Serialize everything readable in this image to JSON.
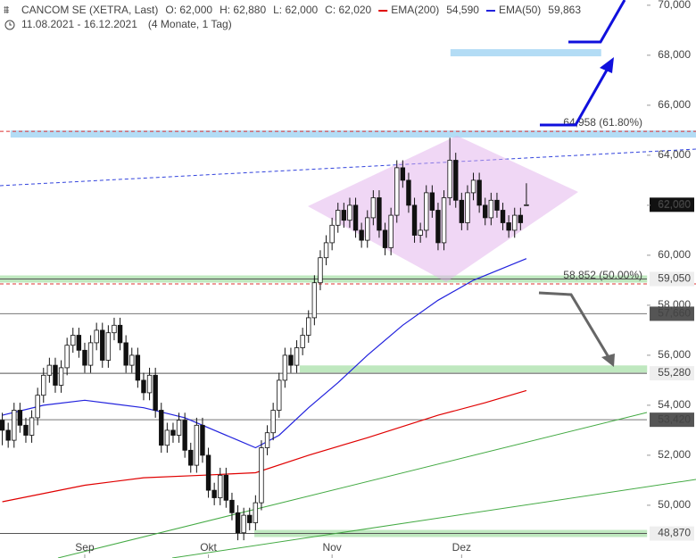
{
  "chart_data": {
    "type": "candlestick",
    "title": "CANCOM SE (XETRA, Last)",
    "header_stats": [
      "O: 62,000",
      "H: 62,880",
      "L: 62,000",
      "C: 62,020"
    ],
    "subtitle": "11.08.2021 - 16.12.2021",
    "period": "(4 Monate, 1 Tag)",
    "xlim": [
      -0.39,
      117.8
    ],
    "ylim": [
      47.89,
      70.21
    ],
    "xticks": [
      {
        "value": 14,
        "label": "Sep"
      },
      {
        "value": 35,
        "label": "Okt"
      },
      {
        "value": 56,
        "label": "Nov"
      },
      {
        "value": 78,
        "label": "Dez"
      }
    ],
    "yticks": [
      {
        "value": 50,
        "label": "50,000"
      },
      {
        "value": 52,
        "label": "52,000"
      },
      {
        "value": 54,
        "label": "54,000"
      },
      {
        "value": 56,
        "label": "56,000"
      },
      {
        "value": 58,
        "label": "58,000"
      },
      {
        "value": 60,
        "label": "60,000"
      },
      {
        "value": 62,
        "label": "62,000"
      },
      {
        "value": 64,
        "label": "64,000"
      },
      {
        "value": 66,
        "label": "66,000"
      },
      {
        "value": 68,
        "label": "68,000"
      },
      {
        "value": 70,
        "label": "70,000"
      }
    ],
    "candles": {
      "open": [
        53.4,
        53.0,
        52.6,
        53.8,
        53.2,
        52.8,
        53.5,
        54.4,
        55.2,
        55.6,
        54.8,
        55.5,
        56.4,
        56.8,
        56.2,
        55.6,
        56.5,
        57.0,
        55.8,
        56.9,
        57.2,
        56.5,
        55.6,
        56.0,
        55.0,
        54.5,
        55.2,
        53.8,
        52.4,
        53.0,
        52.8,
        53.4,
        52.2,
        51.6,
        53.2,
        52.0,
        50.6,
        50.3,
        51.2,
        50.2,
        49.7,
        48.9,
        49.6,
        49.3,
        50.1,
        52.3,
        52.9,
        53.8,
        55.0,
        56.0,
        55.6,
        56.3,
        56.8,
        57.5,
        58.9,
        59.9,
        60.5,
        61.2,
        61.8,
        61.4,
        62.0,
        61.0,
        60.6,
        61.5,
        62.3,
        61.0,
        60.3,
        61.6,
        63.5,
        63.0,
        62.0,
        60.8,
        61.0,
        62.5,
        61.8,
        60.5,
        62.3,
        63.8,
        62.2,
        61.3,
        62.5,
        63.0,
        62.0,
        61.5,
        62.2,
        61.8,
        61.3,
        61.0,
        61.6,
        62.0
      ],
      "high": [
        53.7,
        53.3,
        54.1,
        54.1,
        53.5,
        53.8,
        54.7,
        55.5,
        55.9,
        55.9,
        55.8,
        56.7,
        57.1,
        57.1,
        56.5,
        56.8,
        57.3,
        57.3,
        57.2,
        57.5,
        57.5,
        56.8,
        56.3,
        56.3,
        55.3,
        55.5,
        55.5,
        54.1,
        53.3,
        53.3,
        53.7,
        53.7,
        52.5,
        53.5,
        53.5,
        52.3,
        50.9,
        51.5,
        51.5,
        50.5,
        50.0,
        49.9,
        49.9,
        50.4,
        52.6,
        53.2,
        54.1,
        55.3,
        56.3,
        56.3,
        56.6,
        57.1,
        57.8,
        59.2,
        60.2,
        60.8,
        61.5,
        62.1,
        62.1,
        62.3,
        62.3,
        61.3,
        61.8,
        62.6,
        62.6,
        61.3,
        61.9,
        63.8,
        63.8,
        63.3,
        62.3,
        61.3,
        62.8,
        62.8,
        62.1,
        62.6,
        64.7,
        64.1,
        62.5,
        62.8,
        63.3,
        63.3,
        62.3,
        62.5,
        62.5,
        62.1,
        61.6,
        61.9,
        61.9,
        62.88
      ],
      "low": [
        52.4,
        52.3,
        52.3,
        52.9,
        52.5,
        52.5,
        53.2,
        54.1,
        54.9,
        54.5,
        54.5,
        55.2,
        56.1,
        55.9,
        55.3,
        55.3,
        56.2,
        55.5,
        55.5,
        56.6,
        56.2,
        55.3,
        55.3,
        54.7,
        54.2,
        54.2,
        53.5,
        52.1,
        52.1,
        52.5,
        52.5,
        51.9,
        51.3,
        51.3,
        51.7,
        50.3,
        50.0,
        50.0,
        49.9,
        49.4,
        48.6,
        48.6,
        49.0,
        49.0,
        49.8,
        52.0,
        52.6,
        53.5,
        54.7,
        55.3,
        55.3,
        56.0,
        56.5,
        57.2,
        58.6,
        59.6,
        60.2,
        60.9,
        61.1,
        61.1,
        60.7,
        60.3,
        60.3,
        61.2,
        60.7,
        60.0,
        60.0,
        61.3,
        62.7,
        61.7,
        60.5,
        60.5,
        60.7,
        61.5,
        60.2,
        60.2,
        62.0,
        61.9,
        61.0,
        61.0,
        62.2,
        61.7,
        61.2,
        61.2,
        61.5,
        61.0,
        60.7,
        60.7,
        61.0,
        62.0
      ],
      "close": [
        53.0,
        52.6,
        53.8,
        53.2,
        52.8,
        53.5,
        54.4,
        55.2,
        55.6,
        54.8,
        55.5,
        56.4,
        56.8,
        56.2,
        55.6,
        56.5,
        57.0,
        55.8,
        56.9,
        57.2,
        56.5,
        55.6,
        56.0,
        55.0,
        54.5,
        55.2,
        53.8,
        52.4,
        53.0,
        52.8,
        53.4,
        52.2,
        51.6,
        53.2,
        52.0,
        50.6,
        50.3,
        51.2,
        50.2,
        49.7,
        48.9,
        49.6,
        49.3,
        50.1,
        52.3,
        52.9,
        53.8,
        55.0,
        56.0,
        55.6,
        56.3,
        56.8,
        57.5,
        58.9,
        59.9,
        60.5,
        61.2,
        61.8,
        61.4,
        62.0,
        61.0,
        60.6,
        61.5,
        62.3,
        61.0,
        60.3,
        61.6,
        63.5,
        63.0,
        62.0,
        60.8,
        61.0,
        62.5,
        61.8,
        60.5,
        62.3,
        63.8,
        62.2,
        61.3,
        62.5,
        63.0,
        62.0,
        61.5,
        62.2,
        61.8,
        61.3,
        61.0,
        61.6,
        61.3,
        62.02
      ]
    },
    "series": [
      {
        "name": "EMA(200)",
        "color": "#e00000",
        "last_label": "54,590",
        "x": [
          0,
          14,
          24,
          34,
          43,
          52,
          62,
          74,
          82,
          89
        ],
        "values": [
          50.14,
          50.8,
          51.1,
          51.2,
          51.3,
          52.0,
          52.7,
          53.6,
          54.1,
          54.59
        ]
      },
      {
        "name": "EMA(50)",
        "color": "#2222dd",
        "last_label": "59,863",
        "x": [
          0,
          7,
          14,
          24,
          31,
          40,
          43,
          47,
          52,
          57,
          62,
          68,
          74,
          80,
          89
        ],
        "values": [
          53.6,
          54.0,
          54.2,
          53.9,
          53.5,
          52.6,
          52.3,
          52.8,
          53.9,
          54.9,
          56.0,
          57.2,
          58.2,
          59.0,
          59.863
        ]
      }
    ],
    "zones": [
      {
        "value": 64.85,
        "color": "#b3dcf5",
        "x": [
          1.4,
          117.8
        ]
      },
      {
        "value": 68.1,
        "color": "#b3dcf5",
        "x": [
          76.1,
          101.7
        ]
      },
      {
        "value": 59.05,
        "color": "#bfe8bf",
        "x": [
          -0.39,
          109.5
        ]
      },
      {
        "value": 55.45,
        "color": "#bfe8bf",
        "x": [
          50.5,
          109.5
        ]
      },
      {
        "value": 48.87,
        "color": "#bfe8bf",
        "x": [
          42.8,
          109.5
        ]
      }
    ],
    "fib_levels": [
      {
        "value": 64.958,
        "label": "64,958 (61.80%)"
      },
      {
        "value": 58.852,
        "label": "58,852 (50.00%)"
      }
    ],
    "levels": [
      {
        "value": 62.02,
        "label": "62,020",
        "style": "last"
      },
      {
        "value": 59.05,
        "label": "59,050",
        "style": "box"
      },
      {
        "value": 57.66,
        "label": "57,660",
        "style": "dark"
      },
      {
        "value": 55.28,
        "label": "55,280",
        "style": "box"
      },
      {
        "value": 53.42,
        "label": "53,420",
        "style": "dark"
      },
      {
        "value": 48.87,
        "label": "48,870",
        "style": "box"
      }
    ]
  }
}
